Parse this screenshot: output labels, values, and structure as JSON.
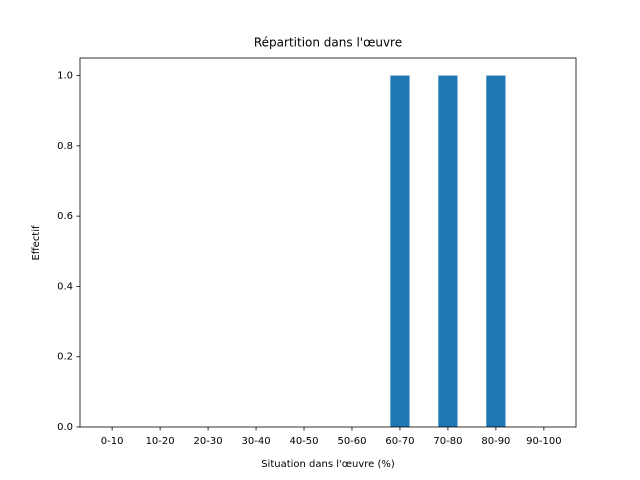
{
  "chart_data": {
    "type": "bar",
    "title": "Répartition dans l'œuvre",
    "x_label": "Situation dans l'œuvre (%)",
    "y_label": "Effectif",
    "categories": [
      "0-10",
      "10-20",
      "20-30",
      "30-40",
      "40-50",
      "50-60",
      "60-70",
      "70-80",
      "80-90",
      "90-100"
    ],
    "values": [
      0,
      0,
      0,
      0,
      0,
      0,
      1,
      1,
      1,
      0
    ],
    "color": "#1f77b4",
    "ylim": [
      0,
      1.05
    ],
    "yticks": [
      {
        "value": 0,
        "label": "0.0"
      },
      {
        "value": 0.2,
        "label": "0.2"
      },
      {
        "value": 0.4,
        "label": "0.4"
      },
      {
        "value": 0.6,
        "label": "0.6"
      },
      {
        "value": 0.8,
        "label": "0.8"
      },
      {
        "value": 1,
        "label": "1.0"
      }
    ]
  }
}
